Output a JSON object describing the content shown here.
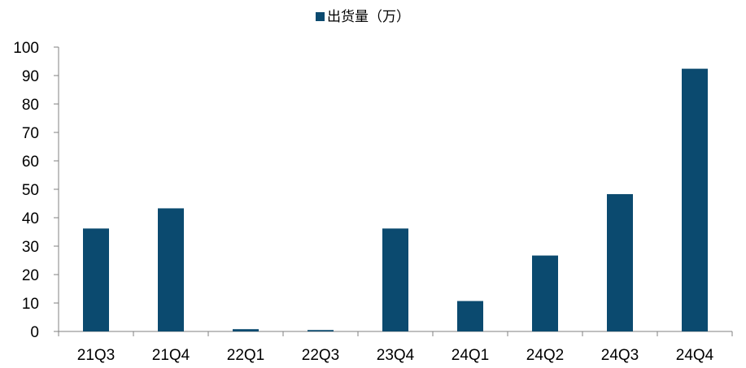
{
  "chart_data": {
    "type": "bar",
    "title": "",
    "xlabel": "",
    "ylabel": "",
    "categories": [
      "21Q3",
      "21Q4",
      "22Q1",
      "22Q3",
      "23Q4",
      "24Q1",
      "24Q2",
      "24Q3",
      "24Q4"
    ],
    "series": [
      {
        "name": "出货量（万）",
        "values": [
          36.2,
          43.3,
          0.8,
          0.5,
          36.2,
          10.7,
          26.7,
          48.3,
          92.4
        ],
        "color": "#0b4a6f"
      }
    ],
    "ylim": [
      0,
      100
    ],
    "yticks": [
      0,
      10,
      20,
      30,
      40,
      50,
      60,
      70,
      80,
      90,
      100
    ],
    "grid": false,
    "legend": "top-center"
  }
}
